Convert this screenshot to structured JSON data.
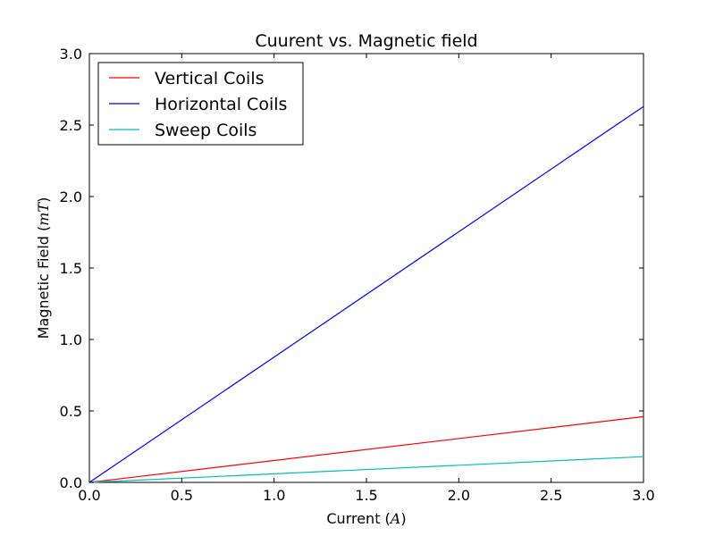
{
  "chart_data": {
    "type": "line",
    "title": "Cuurent vs. Magnetic field",
    "xlabel": "Current (A)",
    "xlabel_text": "Current (",
    "xlabel_math": "A",
    "xlabel_close": ")",
    "ylabel": "Magnetic Field (mT)",
    "ylabel_text": "Magnetic Field (",
    "ylabel_math": "mT",
    "ylabel_close": ")",
    "xlim": [
      0.0,
      3.0
    ],
    "ylim": [
      0.0,
      3.0
    ],
    "xticks": [
      "0.0",
      "0.5",
      "1.0",
      "1.5",
      "2.0",
      "2.5",
      "3.0"
    ],
    "yticks": [
      "0.0",
      "0.5",
      "1.0",
      "1.5",
      "2.0",
      "2.5",
      "3.0"
    ],
    "grid": false,
    "legend_position": "top-left",
    "series": [
      {
        "name": "Vertical Coils",
        "color": "#ff0000",
        "x": [
          0.0,
          3.0
        ],
        "y": [
          0.0,
          0.46
        ]
      },
      {
        "name": "Horizontal Coils",
        "color": "#0000ff",
        "x": [
          0.0,
          3.0
        ],
        "y": [
          0.0,
          2.63
        ]
      },
      {
        "name": "Sweep Coils",
        "color": "#00bfbf",
        "x": [
          0.0,
          3.0
        ],
        "y": [
          0.0,
          0.18
        ]
      }
    ]
  }
}
